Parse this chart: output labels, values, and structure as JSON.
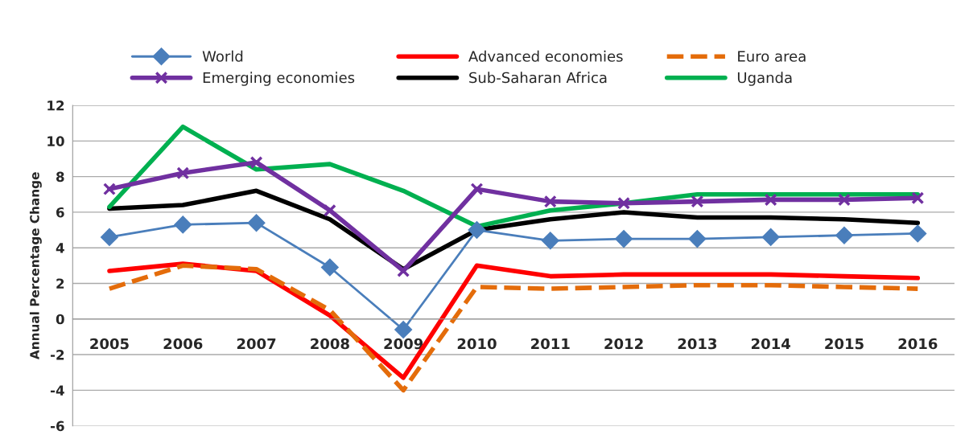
{
  "chart_data": {
    "type": "line",
    "ylabel": "Annual Percentage Change",
    "categories": [
      "2005",
      "2006",
      "2007",
      "2008",
      "2009",
      "2010",
      "2011",
      "2012",
      "2013",
      "2014",
      "2015",
      "2016"
    ],
    "series": [
      {
        "name": "World",
        "color": "#4a7ebb",
        "marker": "diamond",
        "line_style": "solid",
        "values": [
          4.6,
          5.3,
          5.4,
          2.9,
          -0.6,
          5.0,
          4.4,
          4.5,
          4.5,
          4.6,
          4.7,
          4.8
        ]
      },
      {
        "name": "Advanced economies",
        "color": "#ff0000",
        "marker": "none",
        "line_style": "solid",
        "values": [
          2.7,
          3.1,
          2.7,
          0.2,
          -3.3,
          3.0,
          2.4,
          2.5,
          2.5,
          2.5,
          2.4,
          2.3
        ]
      },
      {
        "name": "Euro area",
        "color": "#e46c0a",
        "marker": "none",
        "line_style": "dashed",
        "values": [
          1.7,
          3.0,
          2.8,
          0.5,
          -4.0,
          1.8,
          1.7,
          1.8,
          1.9,
          1.9,
          1.8,
          1.7
        ]
      },
      {
        "name": "Emerging economies",
        "color": "#7030a0",
        "marker": "cross",
        "line_style": "solid",
        "values": [
          7.3,
          8.2,
          8.8,
          6.1,
          2.7,
          7.3,
          6.6,
          6.5,
          6.6,
          6.7,
          6.7,
          6.8
        ]
      },
      {
        "name": "Sub-Saharan Africa",
        "color": "#000000",
        "marker": "none",
        "line_style": "solid",
        "values": [
          6.2,
          6.4,
          7.2,
          5.6,
          2.8,
          5.0,
          5.6,
          6.0,
          5.7,
          5.7,
          5.6,
          5.4
        ]
      },
      {
        "name": "Uganda",
        "color": "#00b050",
        "marker": "none",
        "line_style": "solid",
        "values": [
          6.3,
          10.8,
          8.4,
          8.7,
          7.2,
          5.2,
          6.1,
          6.5,
          7.0,
          7.0,
          7.0,
          7.0
        ]
      }
    ],
    "ylim": [
      -6,
      12
    ],
    "yticks": [
      -6,
      -4,
      -2,
      0,
      2,
      4,
      6,
      8,
      10,
      12
    ],
    "grid": "y",
    "legend": "top"
  }
}
